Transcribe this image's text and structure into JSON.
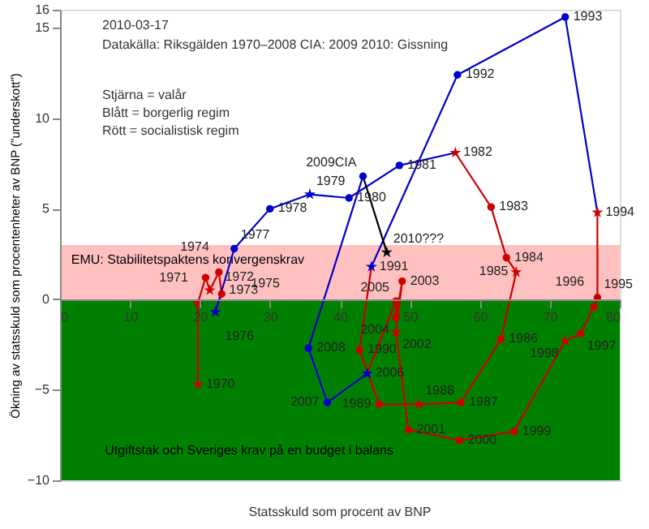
{
  "chart_data": {
    "type": "line",
    "xlabel": "Statsskuld som procent av BNP",
    "ylabel": "Ökning av statsskuld som procentenheter av BNP (\"underskott\")",
    "xlim": [
      0,
      80
    ],
    "xticks": [
      0,
      10,
      20,
      30,
      40,
      50,
      60,
      70,
      80
    ],
    "ylim": [
      -10,
      16
    ],
    "yticks": [
      -10,
      -5,
      0,
      5,
      10,
      15,
      16
    ],
    "grid": false,
    "bands": [
      {
        "axis": "y",
        "from": 0,
        "to": 3,
        "label": "EMU: Stabilitetspaktens konvergenskrav",
        "color": "#ffc0c0"
      },
      {
        "axis": "y",
        "from": -10,
        "to": 0,
        "label": "Utgiftstak och Sveriges krav på en budget i balans",
        "color": "#008000"
      }
    ],
    "series": [
      {
        "marker": "none",
        "color": "#cc0000",
        "x": [
          19.7,
          19.7,
          20.8,
          21.4,
          22.7,
          23.1,
          22.2
        ],
        "values": [
          -4.7,
          -0.2,
          1.2,
          0.5,
          1.5,
          0.3,
          -0.7
        ]
      },
      {
        "marker": "none",
        "color": "#0000cc",
        "x": [
          22.2,
          24.9,
          30,
          35.7,
          41.3,
          48.5,
          56.5
        ],
        "values": [
          -0.7,
          2.8,
          5.0,
          5.8,
          5.6,
          7.4,
          8.1
        ]
      },
      {
        "marker": "none",
        "color": "#cc0000",
        "x": [
          56.5,
          61.6,
          63.8,
          65.2,
          63.0,
          57.3,
          51.3,
          45.6,
          42.8,
          44.5
        ],
        "values": [
          8.1,
          5.1,
          2.3,
          1.5,
          -2.2,
          -5.7,
          -5.8,
          -5.8,
          -2.8,
          1.8
        ]
      },
      {
        "marker": "none",
        "color": "#0000cc",
        "x": [
          44.5,
          56.8,
          72.2,
          76.8
        ],
        "values": [
          1.8,
          12.4,
          15.6,
          4.8
        ]
      },
      {
        "marker": "none",
        "color": "#cc0000",
        "x": [
          76.8,
          76.8,
          76.3,
          74.4,
          72.2,
          64.9,
          57.1,
          49.8,
          48.0,
          48.9,
          48.0,
          48.0,
          43.9
        ],
        "values": [
          4.8,
          0.1,
          -0.4,
          -1.9,
          -2.3,
          -7.3,
          -7.8,
          -7.2,
          -1.8,
          1.0,
          -1.0,
          -0.1,
          -4.1
        ]
      },
      {
        "marker": "none",
        "color": "#0000cc",
        "x": [
          43.9,
          38.2,
          35.5,
          43.3
        ],
        "values": [
          -4.1,
          -5.7,
          -2.7,
          6.8
        ]
      },
      {
        "marker": "none",
        "color": "#000000",
        "x": [
          43.3,
          46.7
        ],
        "values": [
          6.8,
          2.6
        ]
      },
      {
        "type": "scatter",
        "marker": "star",
        "color": "#cc0000",
        "x": [
          19.7,
          21.4,
          56.5,
          65.2,
          51.3,
          76.8,
          72.2,
          48.0
        ],
        "values": [
          -4.7,
          0.5,
          8.1,
          1.5,
          -5.8,
          4.8,
          -2.3,
          -1.8
        ]
      },
      {
        "type": "scatter",
        "marker": "star",
        "color": "#0000cc",
        "x": [
          22.2,
          35.7,
          44.5,
          43.9
        ],
        "values": [
          -0.7,
          5.8,
          1.8,
          -4.1
        ]
      },
      {
        "type": "scatter",
        "marker": "star",
        "color": "#000000",
        "x": [
          46.7
        ],
        "values": [
          2.6
        ]
      },
      {
        "type": "scatter",
        "marker": "circle",
        "color": "#cc0000",
        "x": [
          19.7,
          20.8,
          22.7,
          23.1,
          61.6,
          63.8,
          63.0,
          57.3,
          45.6,
          42.8,
          76.8,
          76.3,
          74.4,
          64.9,
          57.1,
          49.8,
          48.9,
          48.0,
          48.0
        ],
        "values": [
          -0.2,
          1.2,
          1.5,
          0.3,
          5.1,
          2.3,
          -2.2,
          -5.7,
          -5.8,
          -2.8,
          0.1,
          -0.4,
          -1.9,
          -7.3,
          -7.8,
          -7.2,
          1.0,
          -1.0,
          -0.1
        ]
      },
      {
        "type": "scatter",
        "marker": "circle",
        "color": "#0000cc",
        "x": [
          24.9,
          30,
          41.3,
          48.5,
          56.8,
          72.2,
          38.2,
          35.5,
          43.3
        ],
        "values": [
          2.8,
          5.0,
          5.6,
          7.4,
          12.4,
          15.6,
          -5.7,
          -2.7,
          6.8
        ]
      }
    ],
    "annotations": [
      "2010-03-17",
      "Datakälla: Riksgälden 1970–2008 CIA: 2009 2010: Gissning",
      "Stjärna = valår",
      "Blått = borgerlig regim",
      "Rött = socialistisk regim",
      {
        "text": "1970",
        "x": 19.7,
        "y": -4.7
      },
      {
        "text": "1971",
        "x": 19.7,
        "y": -0.2
      },
      {
        "text": "1972",
        "x": 20.8,
        "y": 1.2
      },
      {
        "text": "1973",
        "x": 21.4,
        "y": 0.5
      },
      {
        "text": "1974",
        "x": 22.7,
        "y": 1.5
      },
      {
        "text": "1975",
        "x": 23.1,
        "y": 0.3
      },
      {
        "text": "1976",
        "x": 22.2,
        "y": -0.7
      },
      {
        "text": "1977",
        "x": 24.9,
        "y": 2.8
      },
      {
        "text": "1978",
        "x": 30,
        "y": 5.0
      },
      {
        "text": "1979",
        "x": 35.7,
        "y": 5.8
      },
      {
        "text": "1980",
        "x": 41.3,
        "y": 5.6
      },
      {
        "text": "1981",
        "x": 48.5,
        "y": 7.4
      },
      {
        "text": "1982",
        "x": 56.5,
        "y": 8.1
      },
      {
        "text": "1983",
        "x": 61.6,
        "y": 5.1
      },
      {
        "text": "1984",
        "x": 63.8,
        "y": 2.3
      },
      {
        "text": "1985",
        "x": 65.2,
        "y": 1.5
      },
      {
        "text": "1986",
        "x": 63.0,
        "y": -2.2
      },
      {
        "text": "1987",
        "x": 57.3,
        "y": -5.7
      },
      {
        "text": "1988",
        "x": 51.3,
        "y": -5.8
      },
      {
        "text": "1989",
        "x": 45.6,
        "y": -5.8
      },
      {
        "text": "1990",
        "x": 42.8,
        "y": -2.8
      },
      {
        "text": "1991",
        "x": 44.5,
        "y": 1.8
      },
      {
        "text": "1992",
        "x": 56.8,
        "y": 12.4
      },
      {
        "text": "1993",
        "x": 72.2,
        "y": 15.6
      },
      {
        "text": "1994",
        "x": 76.8,
        "y": 4.8
      },
      {
        "text": "1995",
        "x": 76.8,
        "y": 0.1
      },
      {
        "text": "1996",
        "x": 76.3,
        "y": -0.4
      },
      {
        "text": "1997",
        "x": 74.4,
        "y": -1.9
      },
      {
        "text": "1998",
        "x": 72.2,
        "y": -2.3
      },
      {
        "text": "1999",
        "x": 64.9,
        "y": -7.3
      },
      {
        "text": "2000",
        "x": 57.1,
        "y": -7.8
      },
      {
        "text": "2001",
        "x": 49.8,
        "y": -7.2
      },
      {
        "text": "2002",
        "x": 48.0,
        "y": -1.8
      },
      {
        "text": "2003",
        "x": 48.9,
        "y": 1.0
      },
      {
        "text": "2004",
        "x": 48.0,
        "y": -1.0
      },
      {
        "text": "2005",
        "x": 48.0,
        "y": -0.1
      },
      {
        "text": "2006",
        "x": 43.9,
        "y": -4.1
      },
      {
        "text": "2007",
        "x": 38.2,
        "y": -5.7
      },
      {
        "text": "2008",
        "x": 35.5,
        "y": -2.7
      },
      {
        "text": "2009CIA",
        "x": 43.3,
        "y": 6.8
      },
      {
        "text": "2010???",
        "x": 46.7,
        "y": 2.6
      }
    ]
  }
}
